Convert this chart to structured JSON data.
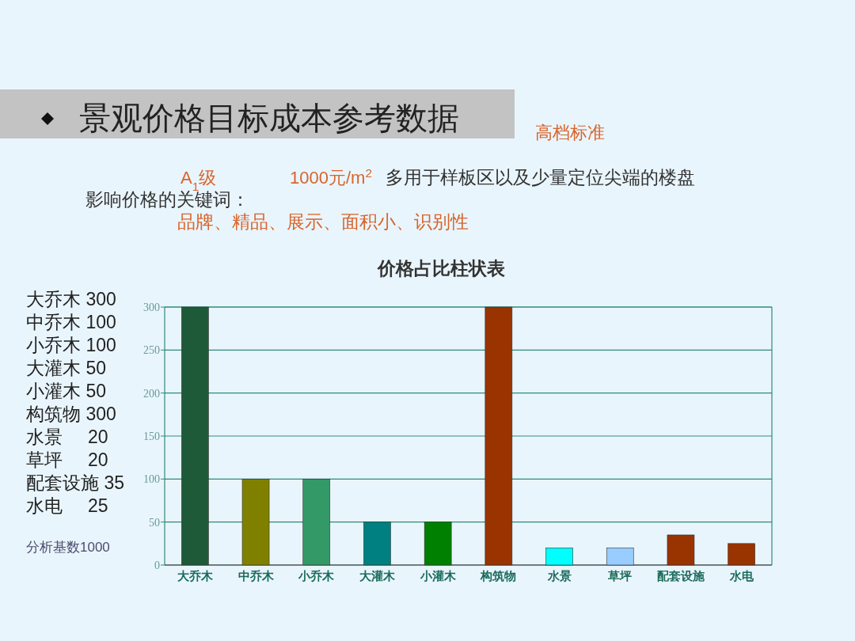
{
  "chart_data": {
    "type": "bar",
    "title": "景观价格目标成本参考数据",
    "subtitle": "高档标准",
    "annotations": [
      "A$_{1}$级",
      "1000元/m$^{2}$",
      "多用于样板区以及少量定位尖端的楼盘",
      "影响价格的关键词：",
      "品牌、精品、展示、面积小、识别性",
      "价格占比柱状表",
      "大乔木 300",
      "中乔木 100",
      "小乔木 100",
      "大灌木 50",
      "小灌木 50",
      "构筑物 300",
      "水景     20",
      "草坪     20",
      "配套设施 35",
      "水电     25",
      "分析基数1000"
    ],
    "categories": [
      "大乔木",
      "中乔木",
      "小乔木",
      "大灌木",
      "小灌木",
      "构筑物",
      "水景",
      "草坪",
      "配套设施",
      "水电"
    ],
    "values": [
      300,
      100,
      100,
      50,
      50,
      300,
      20,
      20,
      35,
      25
    ],
    "colors": [
      "#1f5a38",
      "#808000",
      "#339966",
      "#008080",
      "#008000",
      "#993300",
      "#00ffff",
      "#99ccff",
      "#993300",
      "#993300"
    ],
    "ylim": [
      0,
      300
    ],
    "yticks": [
      0,
      50,
      100,
      150,
      200,
      250,
      300
    ],
    "grid": "y"
  }
}
